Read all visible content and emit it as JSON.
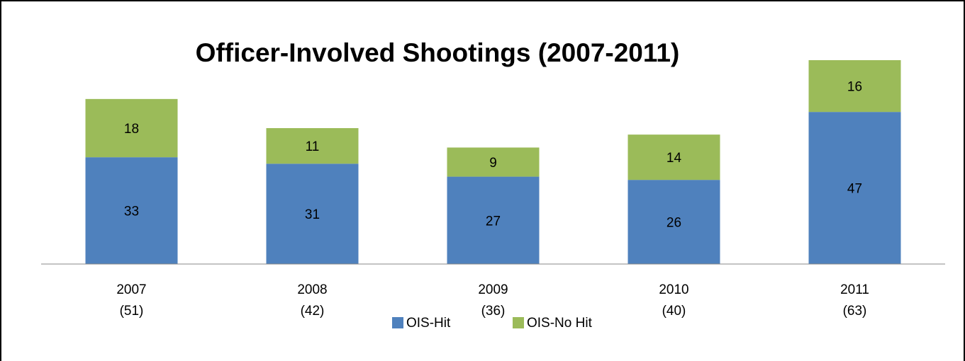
{
  "chart_data": {
    "type": "stacked_bar",
    "title": "Officer-Involved Shootings (2007-2011)",
    "categories": [
      "2007",
      "2008",
      "2009",
      "2010",
      "2011"
    ],
    "category_sublabels": [
      "(51)",
      "(42)",
      "(36)",
      "(40)",
      "(63)"
    ],
    "series": [
      {
        "name": "OIS-Hit",
        "color": "#4f81bd",
        "values": [
          33,
          31,
          27,
          26,
          47
        ]
      },
      {
        "name": "OIS-No Hit",
        "color": "#9bbb59",
        "values": [
          18,
          11,
          9,
          14,
          16
        ]
      }
    ],
    "ylim": [
      0,
      70
    ],
    "legend": "bottom"
  }
}
